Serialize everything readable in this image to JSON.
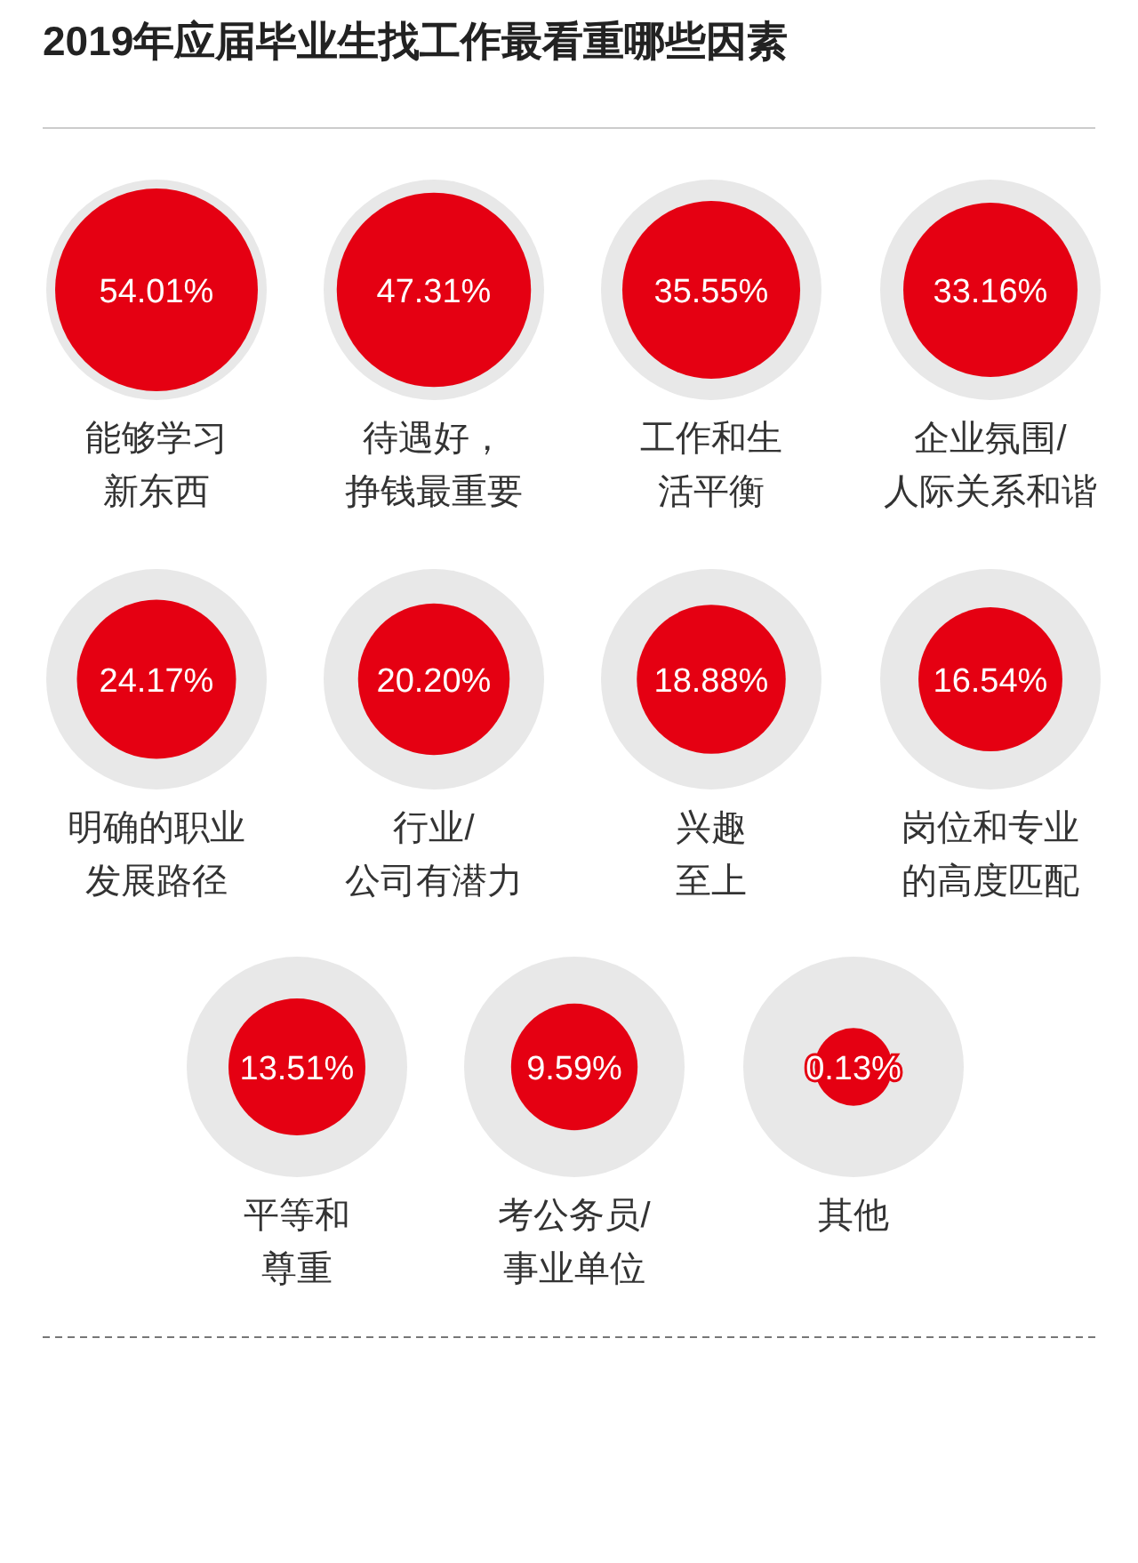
{
  "chart_data": {
    "type": "other",
    "title": "2019年应届毕业生找工作最看重哪些因素",
    "categories": [
      "能够学习新东西",
      "待遇好，挣钱最重要",
      "工作和生活平衡",
      "企业氛围/人际关系和谐",
      "明确的职业发展路径",
      "行业/公司有潜力",
      "兴趣至上",
      "岗位和专业的高度匹配",
      "平等和尊重",
      "考公务员/事业单位",
      "其他"
    ],
    "values": [
      54.01,
      47.31,
      35.55,
      33.16,
      24.17,
      20.2,
      18.88,
      16.54,
      13.51,
      9.59,
      0.13
    ],
    "value_labels": [
      "54.01%",
      "47.31%",
      "35.55%",
      "33.16%",
      "24.17%",
      "20.20%",
      "18.88%",
      "16.54%",
      "13.51%",
      "9.59%",
      "0.13%"
    ],
    "color": "#e50012"
  }
}
